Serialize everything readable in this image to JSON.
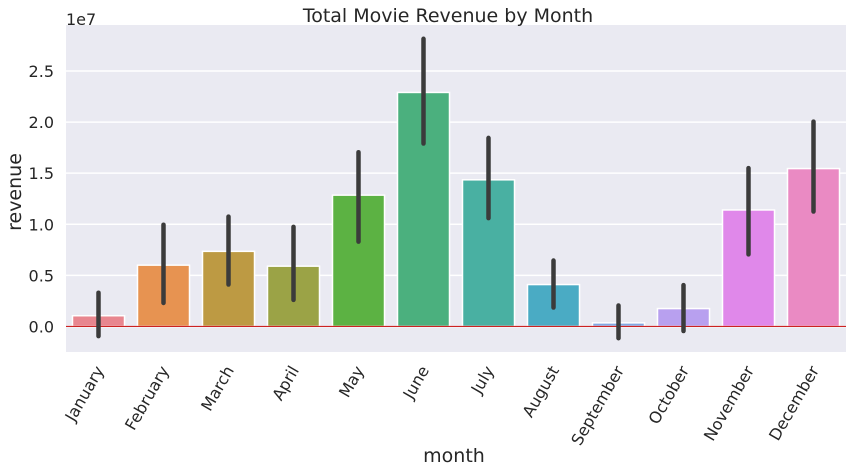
{
  "chart_data": {
    "type": "bar",
    "title": "Total Movie Revenue by Month",
    "xlabel": "month",
    "ylabel": "revenue",
    "y_scale_label": "1e7",
    "categories": [
      "January",
      "February",
      "March",
      "April",
      "May",
      "June",
      "July",
      "August",
      "September",
      "October",
      "November",
      "December"
    ],
    "values": [
      1050000.0,
      6000000.0,
      7350000.0,
      5900000.0,
      12850000.0,
      22900000.0,
      14350000.0,
      4100000.0,
      350000.0,
      1750000.0,
      11400000.0,
      15450000.0
    ],
    "ci_low": [
      -950000.0,
      2300000.0,
      4100000.0,
      2600000.0,
      8300000.0,
      17900000.0,
      10600000.0,
      1850000.0,
      -1150000.0,
      -450000.0,
      7050000.0,
      11250000.0
    ],
    "ci_high": [
      3300000.0,
      9950000.0,
      10750000.0,
      9750000.0,
      17050000.0,
      28150000.0,
      18450000.0,
      6450000.0,
      2050000.0,
      4050000.0,
      15500000.0,
      20050000.0
    ],
    "colors": [
      "#e8868f",
      "#e79351",
      "#bd9a43",
      "#9ba346",
      "#5cb243",
      "#4bb07e",
      "#49b0a2",
      "#4aabc4",
      "#83a8e3",
      "#b8a0ef",
      "#e088ea",
      "#ea8ac3"
    ],
    "yticks": [
      0,
      5000000,
      10000000,
      15000000,
      20000000,
      25000000
    ],
    "ytick_labels": [
      "0.0",
      "0.5",
      "1.0",
      "1.5",
      "2.0",
      "2.5"
    ],
    "ylim": [
      -2500000,
      29500000
    ],
    "grid": true,
    "reference_line": {
      "y": 0,
      "color": "#cc2222"
    },
    "background": "#eaeaf2",
    "errorbar_color": "#3b3b3b"
  }
}
